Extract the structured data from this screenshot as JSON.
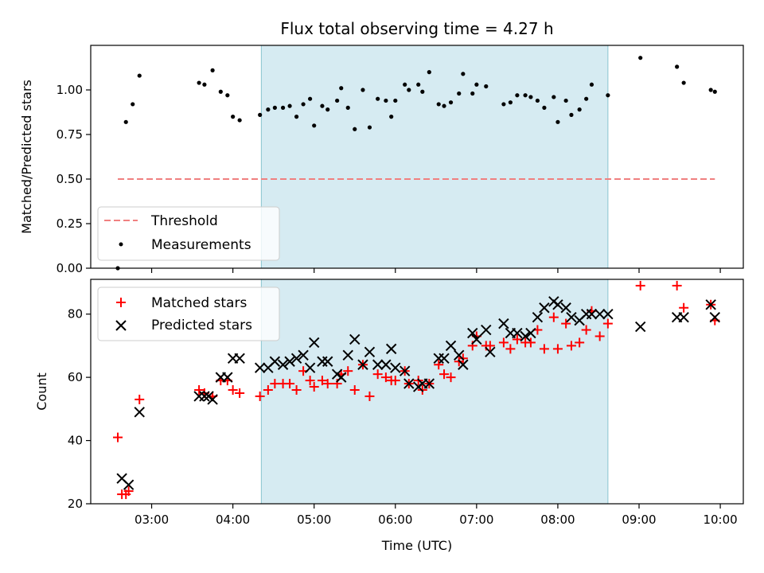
{
  "chart_data": [
    {
      "type": "scatter",
      "title": "Flux total observing time = 4.27 h",
      "ylabel": "Matched/Predicted stars",
      "xlabel": "",
      "ylim": [
        0,
        1.25
      ],
      "yticks": [
        "0.00",
        "0.25",
        "0.50",
        "0.75",
        "1.00"
      ],
      "ytick_values": [
        0,
        0.25,
        0.5,
        0.75,
        1.0
      ],
      "shaded_span": [
        "04:21",
        "08:37"
      ],
      "threshold": {
        "name": "Threshold",
        "value": 0.5,
        "x_range": [
          "02:35",
          "09:56"
        ],
        "color": "#f08080"
      },
      "series": [
        {
          "name": "Measurements",
          "color": "#000000",
          "x": [
            "02:35",
            "02:41",
            "02:46",
            "02:51",
            "03:35",
            "03:39",
            "03:45",
            "03:51",
            "03:56",
            "04:00",
            "04:05",
            "04:20",
            "04:26",
            "04:31",
            "04:37",
            "04:42",
            "04:47",
            "04:52",
            "04:57",
            "05:00",
            "05:06",
            "05:10",
            "05:17",
            "05:20",
            "05:25",
            "05:30",
            "05:36",
            "05:41",
            "05:47",
            "05:53",
            "05:57",
            "06:00",
            "06:07",
            "06:10",
            "06:17",
            "06:20",
            "06:25",
            "06:32",
            "06:36",
            "06:41",
            "06:47",
            "06:50",
            "06:57",
            "07:00",
            "07:07",
            "07:20",
            "07:25",
            "07:30",
            "07:36",
            "07:40",
            "07:45",
            "07:50",
            "07:57",
            "08:00",
            "08:06",
            "08:10",
            "08:16",
            "08:21",
            "08:25",
            "08:37",
            "09:01",
            "09:28",
            "09:33",
            "09:53",
            "09:56"
          ],
          "values": [
            0.0,
            0.82,
            0.92,
            1.08,
            1.04,
            1.03,
            1.11,
            0.99,
            0.97,
            0.85,
            0.83,
            0.86,
            0.89,
            0.9,
            0.9,
            0.91,
            0.85,
            0.92,
            0.95,
            0.8,
            0.91,
            0.89,
            0.94,
            1.01,
            0.9,
            0.78,
            1.0,
            0.79,
            0.95,
            0.94,
            0.85,
            0.94,
            1.03,
            1.0,
            1.03,
            0.99,
            1.1,
            0.92,
            0.91,
            0.93,
            0.98,
            1.09,
            0.98,
            1.03,
            1.02,
            0.92,
            0.93,
            0.97,
            0.97,
            0.96,
            0.94,
            0.9,
            0.96,
            0.82,
            0.94,
            0.86,
            0.89,
            0.95,
            1.03,
            0.97,
            1.18,
            1.13,
            1.04,
            1.0,
            0.99
          ]
        }
      ],
      "legend": {
        "position": "lower left",
        "entries": [
          "Threshold",
          "Measurements"
        ]
      }
    },
    {
      "type": "scatter",
      "title": "",
      "ylabel": "Count",
      "xlabel": "Time (UTC)",
      "ylim": [
        20,
        91
      ],
      "yticks": [
        "20",
        "40",
        "60",
        "80"
      ],
      "ytick_values": [
        20,
        40,
        60,
        80
      ],
      "xlim": [
        "02:15",
        "10:17"
      ],
      "xticks": [
        "03:00",
        "04:00",
        "05:00",
        "06:00",
        "07:00",
        "08:00",
        "09:00",
        "10:00"
      ],
      "shaded_span": [
        "04:21",
        "08:37"
      ],
      "series": [
        {
          "name": "Matched stars",
          "color": "#ff0000",
          "marker": "plus",
          "x": [
            "02:35",
            "02:38",
            "02:41",
            "02:43",
            "02:51",
            "03:35",
            "03:39",
            "03:45",
            "03:51",
            "03:56",
            "04:00",
            "04:05",
            "04:20",
            "04:26",
            "04:31",
            "04:37",
            "04:42",
            "04:47",
            "04:52",
            "04:57",
            "05:00",
            "05:06",
            "05:10",
            "05:17",
            "05:20",
            "05:25",
            "05:30",
            "05:36",
            "05:41",
            "05:47",
            "05:53",
            "05:57",
            "06:00",
            "06:07",
            "06:10",
            "06:17",
            "06:20",
            "06:25",
            "06:32",
            "06:36",
            "06:41",
            "06:47",
            "06:50",
            "06:57",
            "07:00",
            "07:07",
            "07:10",
            "07:20",
            "07:25",
            "07:30",
            "07:36",
            "07:40",
            "07:45",
            "07:50",
            "07:57",
            "08:00",
            "08:06",
            "08:10",
            "08:16",
            "08:21",
            "08:25",
            "08:31",
            "08:37",
            "09:01",
            "09:28",
            "09:33",
            "09:53",
            "09:56"
          ],
          "values": [
            41,
            23,
            23,
            24,
            53,
            56,
            55,
            54,
            59,
            59,
            56,
            55,
            54,
            56,
            58,
            58,
            58,
            56,
            62,
            59,
            57,
            59,
            58,
            58,
            61,
            62,
            56,
            64,
            54,
            61,
            60,
            59,
            59,
            62,
            58,
            59,
            56,
            58,
            64,
            61,
            60,
            65,
            66,
            70,
            73,
            70,
            70,
            71,
            69,
            72,
            71,
            71,
            75,
            69,
            79,
            69,
            77,
            70,
            71,
            75,
            81,
            73,
            77,
            89,
            89,
            82,
            83,
            78
          ]
        },
        {
          "name": "Predicted stars",
          "color": "#000000",
          "marker": "x",
          "x": [
            "02:38",
            "02:43",
            "02:51",
            "03:35",
            "03:39",
            "03:42",
            "03:45",
            "03:51",
            "03:56",
            "04:00",
            "04:05",
            "04:20",
            "04:26",
            "04:31",
            "04:37",
            "04:42",
            "04:47",
            "04:52",
            "04:57",
            "05:00",
            "05:06",
            "05:10",
            "05:17",
            "05:20",
            "05:25",
            "05:30",
            "05:36",
            "05:41",
            "05:47",
            "05:53",
            "05:57",
            "06:00",
            "06:07",
            "06:10",
            "06:17",
            "06:20",
            "06:25",
            "06:32",
            "06:36",
            "06:41",
            "06:47",
            "06:50",
            "06:57",
            "07:00",
            "07:07",
            "07:10",
            "07:20",
            "07:25",
            "07:30",
            "07:36",
            "07:40",
            "07:45",
            "07:50",
            "07:57",
            "08:00",
            "08:06",
            "08:10",
            "08:16",
            "08:21",
            "08:25",
            "08:31",
            "08:37",
            "09:01",
            "09:28",
            "09:33",
            "09:53",
            "09:56"
          ],
          "values": [
            28,
            26,
            49,
            54,
            54,
            54,
            53,
            60,
            60,
            66,
            66,
            63,
            63,
            65,
            64,
            65,
            66,
            67,
            63,
            71,
            65,
            65,
            61,
            60,
            67,
            72,
            64,
            68,
            64,
            64,
            69,
            63,
            62,
            58,
            57,
            58,
            58,
            66,
            66,
            70,
            67,
            64,
            74,
            72,
            75,
            68,
            77,
            74,
            74,
            73,
            74,
            79,
            82,
            84,
            83,
            82,
            79,
            78,
            80,
            80,
            80,
            80,
            76,
            79,
            79,
            83,
            79
          ]
        }
      ],
      "legend": {
        "position": "upper left",
        "entries": [
          "Matched stars",
          "Predicted stars"
        ]
      }
    }
  ]
}
